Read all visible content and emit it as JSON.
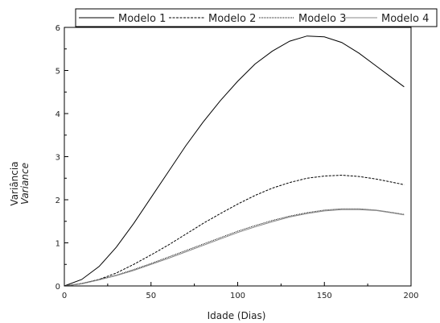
{
  "chart_data": {
    "type": "line",
    "xlabel": "Idade (Dias)",
    "ylabel": "Variância",
    "ylabel_secondary": "Variance",
    "xlim": [
      0,
      200
    ],
    "ylim": [
      0,
      6
    ],
    "x_ticks": [
      0,
      50,
      100,
      150,
      200
    ],
    "y_ticks": [
      0,
      1,
      2,
      3,
      4,
      5,
      6
    ],
    "grid": false,
    "legend_position": "top",
    "series": [
      {
        "name": "Modelo 1",
        "style": "solid",
        "color": "#000000",
        "x": [
          0,
          10,
          20,
          30,
          40,
          50,
          60,
          70,
          80,
          90,
          100,
          110,
          120,
          130,
          140,
          150,
          160,
          170,
          180,
          190,
          196
        ],
        "y": [
          0.0,
          0.15,
          0.45,
          0.9,
          1.45,
          2.05,
          2.65,
          3.25,
          3.8,
          4.3,
          4.75,
          5.15,
          5.45,
          5.68,
          5.8,
          5.78,
          5.65,
          5.4,
          5.1,
          4.8,
          4.62
        ]
      },
      {
        "name": "Modelo 2",
        "style": "dashed",
        "color": "#000000",
        "x": [
          0,
          10,
          20,
          30,
          40,
          50,
          60,
          70,
          80,
          90,
          100,
          110,
          120,
          130,
          140,
          150,
          160,
          170,
          180,
          190,
          196
        ],
        "y": [
          0.0,
          0.05,
          0.15,
          0.3,
          0.5,
          0.72,
          0.95,
          1.2,
          1.45,
          1.68,
          1.9,
          2.1,
          2.27,
          2.4,
          2.5,
          2.55,
          2.57,
          2.54,
          2.48,
          2.4,
          2.35
        ]
      },
      {
        "name": "Modelo 3",
        "style": "dotted",
        "color": "#000000",
        "x": [
          0,
          10,
          20,
          30,
          40,
          50,
          60,
          70,
          80,
          90,
          100,
          110,
          120,
          130,
          140,
          150,
          160,
          170,
          180,
          190,
          196
        ],
        "y": [
          0.0,
          0.06,
          0.15,
          0.25,
          0.38,
          0.52,
          0.67,
          0.82,
          0.97,
          1.12,
          1.27,
          1.4,
          1.52,
          1.62,
          1.7,
          1.76,
          1.79,
          1.79,
          1.76,
          1.7,
          1.66
        ]
      },
      {
        "name": "Modelo 4",
        "style": "solid-gray",
        "color": "#888888",
        "x": [
          0,
          10,
          20,
          30,
          40,
          50,
          60,
          70,
          80,
          90,
          100,
          110,
          120,
          130,
          140,
          150,
          160,
          170,
          180,
          190,
          196
        ],
        "y": [
          0.0,
          0.05,
          0.14,
          0.24,
          0.36,
          0.5,
          0.64,
          0.79,
          0.94,
          1.09,
          1.24,
          1.37,
          1.49,
          1.6,
          1.68,
          1.74,
          1.77,
          1.77,
          1.75,
          1.69,
          1.65
        ]
      }
    ]
  }
}
